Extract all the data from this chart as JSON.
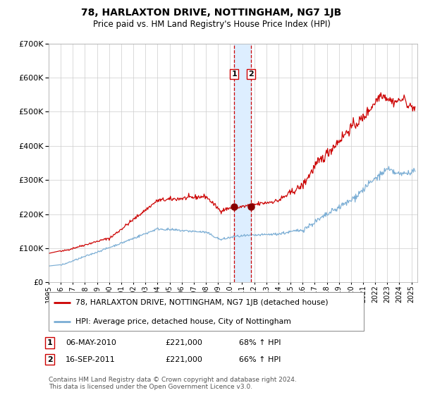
{
  "title": "78, HARLAXTON DRIVE, NOTTINGHAM, NG7 1JB",
  "subtitle": "Price paid vs. HM Land Registry's House Price Index (HPI)",
  "legend_line1": "78, HARLAXTON DRIVE, NOTTINGHAM, NG7 1JB (detached house)",
  "legend_line2": "HPI: Average price, detached house, City of Nottingham",
  "transaction1_date": "06-MAY-2010",
  "transaction1_price": "£221,000",
  "transaction1_hpi": "68% ↑ HPI",
  "transaction2_date": "16-SEP-2011",
  "transaction2_price": "£221,000",
  "transaction2_hpi": "66% ↑ HPI",
  "footer": "Contains HM Land Registry data © Crown copyright and database right 2024.\nThis data is licensed under the Open Government Licence v3.0.",
  "red_color": "#cc0000",
  "blue_color": "#7aadd4",
  "background_color": "#ffffff",
  "grid_color": "#cccccc",
  "vline1_year": 2010.35,
  "vline2_year": 2011.71,
  "highlight_color": "#ddeeff",
  "ylim": [
    0,
    700000
  ],
  "xlim_start": 1995,
  "xlim_end": 2025.5,
  "yticks": [
    0,
    100000,
    200000,
    300000,
    400000,
    500000,
    600000,
    700000
  ]
}
